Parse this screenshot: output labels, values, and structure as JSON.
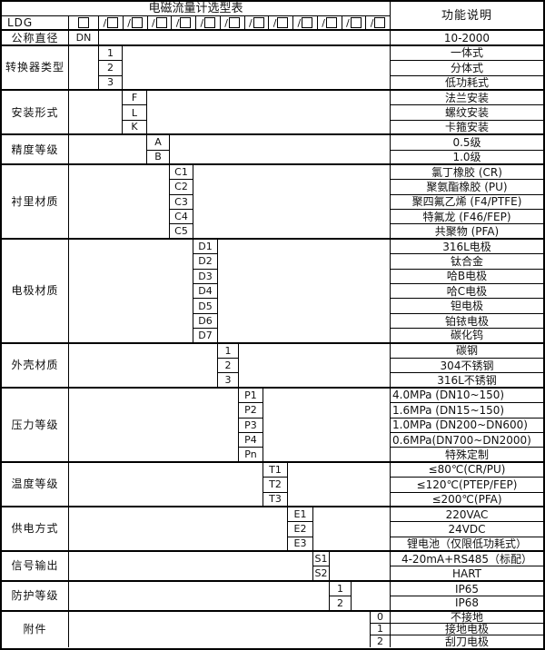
{
  "title": "电磁流量计选型表",
  "function_header": "功能说明",
  "colors": {
    "border": "#000000",
    "background": "#ffffff",
    "text": "#111111"
  },
  "model_row": {
    "prefix": "LDG",
    "first_box": "checkbox",
    "slot_count": 12,
    "slot_symbol": "/"
  },
  "sections": [
    {
      "label": "公称直径",
      "col": 2,
      "rows": [
        {
          "code": "DN",
          "desc": "10-2000"
        }
      ]
    },
    {
      "label": "转换器类型",
      "col": 3,
      "rows": [
        {
          "code": "1",
          "desc": "一体式"
        },
        {
          "code": "2",
          "desc": "分体式"
        },
        {
          "code": "3",
          "desc": "低功耗式"
        }
      ]
    },
    {
      "label": "安装形式",
      "col": 4,
      "rows": [
        {
          "code": "F",
          "desc": "法兰安装"
        },
        {
          "code": "L",
          "desc": "螺纹安装"
        },
        {
          "code": "K",
          "desc": "卡箍安装"
        }
      ]
    },
    {
      "label": "精度等级",
      "col": 5,
      "rows": [
        {
          "code": "A",
          "desc": "0.5级"
        },
        {
          "code": "B",
          "desc": "1.0级"
        }
      ]
    },
    {
      "label": "衬里材质",
      "col": 6,
      "rows": [
        {
          "code": "C1",
          "desc": "氯丁橡胶 (CR)"
        },
        {
          "code": "C2",
          "desc": "聚氨酯橡胶 (PU)"
        },
        {
          "code": "C3",
          "desc": "聚四氟乙烯 (F4/PTFE)"
        },
        {
          "code": "C4",
          "desc": "特氟龙 (F46/FEP)"
        },
        {
          "code": "C5",
          "desc": "共聚物 (PFA)"
        }
      ]
    },
    {
      "label": "电极材质",
      "col": 7,
      "rows": [
        {
          "code": "D1",
          "desc": "316L电极"
        },
        {
          "code": "D2",
          "desc": "钛合金"
        },
        {
          "code": "D3",
          "desc": "哈B电极"
        },
        {
          "code": "D4",
          "desc": "哈C电极"
        },
        {
          "code": "D5",
          "desc": "钽电极"
        },
        {
          "code": "D6",
          "desc": "铂铱电极"
        },
        {
          "code": "D7",
          "desc": "碳化钨"
        }
      ]
    },
    {
      "label": "外壳材质",
      "col": 8,
      "rows": [
        {
          "code": "1",
          "desc": "碳钢"
        },
        {
          "code": "2",
          "desc": "304不锈钢"
        },
        {
          "code": "3",
          "desc": "316L不锈钢"
        }
      ]
    },
    {
      "label": "压力等级",
      "col": 9,
      "rows": [
        {
          "code": "P1",
          "desc": "4.0MPa (DN10~150)",
          "align": "left"
        },
        {
          "code": "P2",
          "desc": "1.6MPa (DN15~150)",
          "align": "left"
        },
        {
          "code": "P3",
          "desc": "1.0MPa (DN200~DN600)",
          "align": "left"
        },
        {
          "code": "P4",
          "desc": "0.6MPa(DN700~DN2000)",
          "align": "left"
        },
        {
          "code": "Pn",
          "desc": "特殊定制"
        }
      ]
    },
    {
      "label": "温度等级",
      "col": 10,
      "rows": [
        {
          "code": "T1",
          "desc": "≤80℃(CR/PU)"
        },
        {
          "code": "T2",
          "desc": "≤120℃(PTEP/FEP)"
        },
        {
          "code": "T3",
          "desc": "≤200℃(PFA)"
        }
      ]
    },
    {
      "label": "供电方式",
      "col": 11,
      "rows": [
        {
          "code": "E1",
          "desc": "220VAC"
        },
        {
          "code": "E2",
          "desc": "24VDC"
        },
        {
          "code": "E3",
          "desc": "锂电池（仅限低功耗式）"
        }
      ]
    },
    {
      "label": "信号输出",
      "col": 12,
      "rows": [
        {
          "code": "S1",
          "desc": "4-20mA+RS485（标配）"
        },
        {
          "code": "S2",
          "desc": "HART"
        }
      ]
    },
    {
      "label": "防护等级",
      "col": 13,
      "rows": [
        {
          "code": "1",
          "desc": "IP65"
        },
        {
          "code": "2",
          "desc": "IP68"
        }
      ]
    },
    {
      "label": "附件",
      "col": 15,
      "rows": [
        {
          "code": "0",
          "desc": "不接地"
        },
        {
          "code": "1",
          "desc": "接地电极"
        },
        {
          "code": "2",
          "desc": "刮刀电极"
        }
      ]
    }
  ]
}
